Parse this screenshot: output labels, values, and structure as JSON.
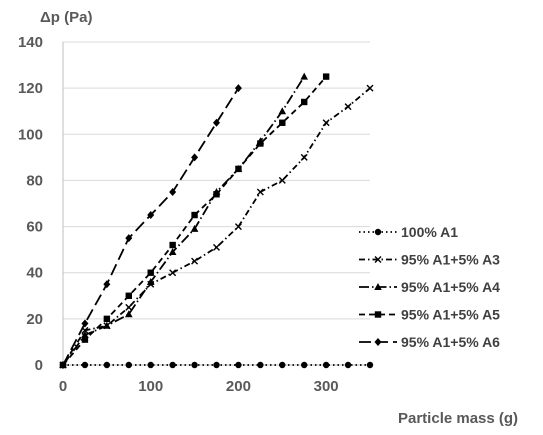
{
  "chart_data": {
    "type": "line",
    "title": "",
    "ylabel": "Δp (Pa)",
    "xlabel": "Particle mass (g)",
    "xlim": [
      0,
      350
    ],
    "ylim": [
      0,
      140
    ],
    "x_ticks": [
      "0",
      "100",
      "200",
      "300"
    ],
    "y_ticks": [
      "0",
      "20",
      "40",
      "60",
      "80",
      "100",
      "120",
      "140"
    ],
    "grid": "horizontal",
    "legend_position": "bottom-right",
    "series": [
      {
        "name": "100% A1",
        "marker": "circle",
        "dash": "dot",
        "points": [
          [
            0,
            0
          ],
          [
            25,
            0
          ],
          [
            50,
            0
          ],
          [
            75,
            0
          ],
          [
            100,
            0
          ],
          [
            125,
            0
          ],
          [
            150,
            0
          ],
          [
            175,
            0
          ],
          [
            200,
            0
          ],
          [
            225,
            0
          ],
          [
            250,
            0
          ],
          [
            275,
            0
          ],
          [
            300,
            0
          ],
          [
            325,
            0
          ],
          [
            350,
            0
          ]
        ]
      },
      {
        "name": "95% A1+5% A3",
        "marker": "x",
        "dash": "dash-dot",
        "points": [
          [
            0,
            0
          ],
          [
            25,
            15
          ],
          [
            50,
            17
          ],
          [
            75,
            25
          ],
          [
            100,
            35
          ],
          [
            125,
            40
          ],
          [
            150,
            45
          ],
          [
            175,
            51
          ],
          [
            200,
            60
          ],
          [
            225,
            75
          ],
          [
            250,
            80
          ],
          [
            275,
            90
          ],
          [
            300,
            105
          ],
          [
            325,
            112
          ],
          [
            350,
            120
          ]
        ]
      },
      {
        "name": "95% A1+5% A4",
        "marker": "triangle",
        "dash": "long-dash-dot",
        "points": [
          [
            0,
            0
          ],
          [
            25,
            13
          ],
          [
            50,
            17
          ],
          [
            75,
            22
          ],
          [
            100,
            36
          ],
          [
            125,
            49
          ],
          [
            150,
            59
          ],
          [
            175,
            75
          ],
          [
            200,
            85
          ],
          [
            225,
            97
          ],
          [
            250,
            110
          ],
          [
            275,
            125
          ]
        ]
      },
      {
        "name": "95% A1+5% A5",
        "marker": "square",
        "dash": "dash",
        "points": [
          [
            0,
            0
          ],
          [
            25,
            11
          ],
          [
            50,
            20
          ],
          [
            75,
            30
          ],
          [
            100,
            40
          ],
          [
            125,
            52
          ],
          [
            150,
            65
          ],
          [
            175,
            74
          ],
          [
            200,
            85
          ],
          [
            225,
            96
          ],
          [
            250,
            105
          ],
          [
            275,
            114
          ],
          [
            300,
            125
          ]
        ]
      },
      {
        "name": "95% A1+5% A6",
        "marker": "diamond",
        "dash": "long-dash",
        "points": [
          [
            0,
            0
          ],
          [
            25,
            18
          ],
          [
            50,
            35
          ],
          [
            75,
            55
          ],
          [
            100,
            65
          ],
          [
            125,
            75
          ],
          [
            150,
            90
          ],
          [
            175,
            105
          ],
          [
            200,
            120
          ]
        ]
      }
    ]
  }
}
